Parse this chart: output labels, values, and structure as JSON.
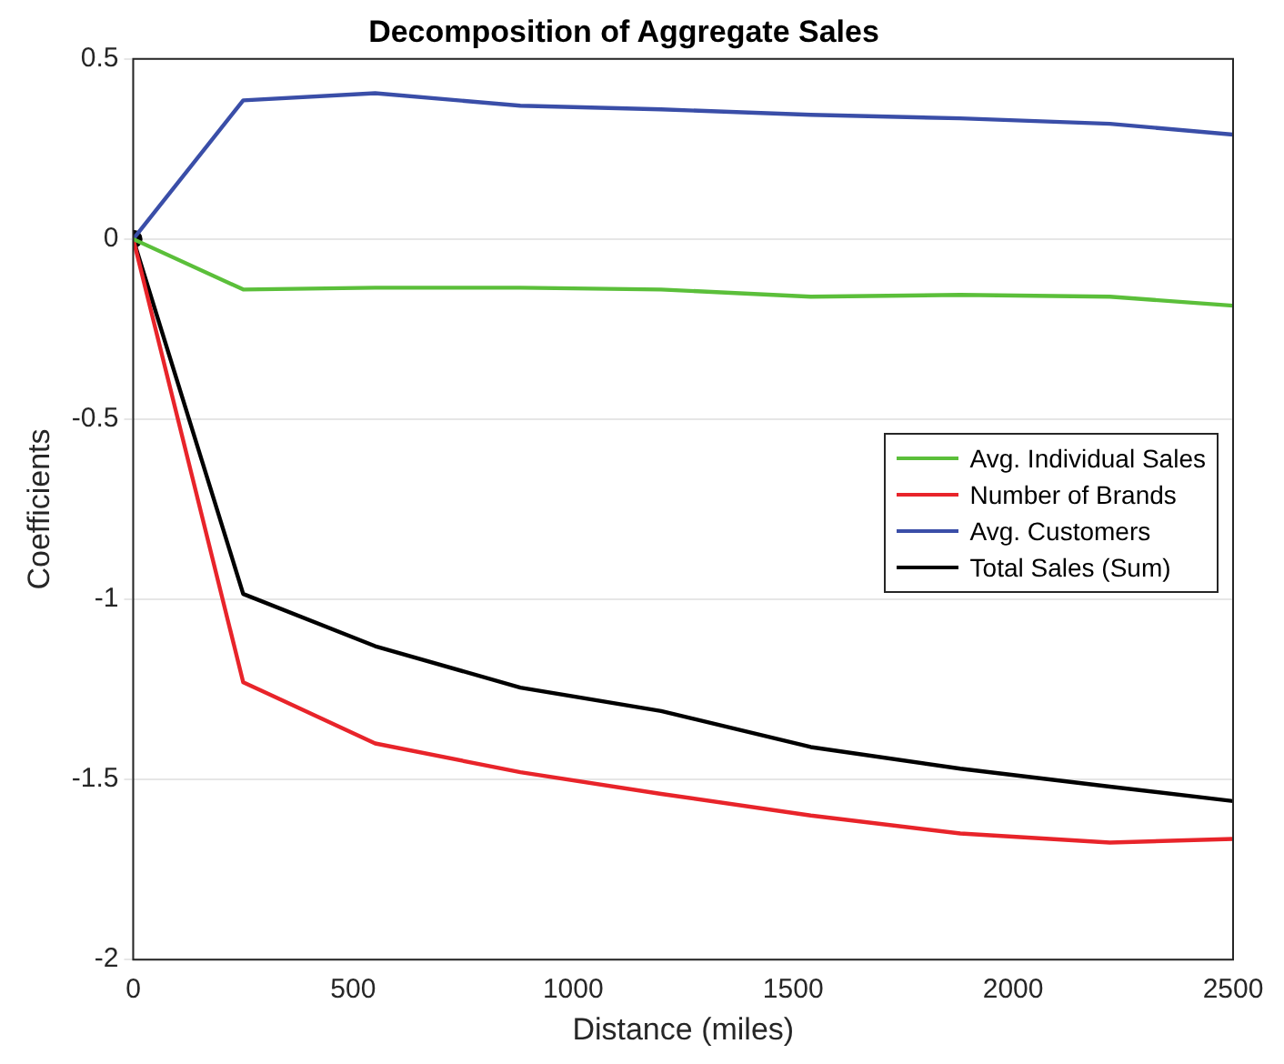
{
  "chart_data": {
    "type": "line",
    "title": "Decomposition of Aggregate Sales",
    "xlabel": "Distance (miles)",
    "ylabel": "Coefficients",
    "x": [
      0,
      250,
      550,
      880,
      1200,
      1540,
      1880,
      2220,
      2500
    ],
    "series": [
      {
        "name": "Avg. Individual Sales",
        "color": "#5bbf3a",
        "values": [
          0,
          -0.14,
          -0.135,
          -0.135,
          -0.14,
          -0.16,
          -0.155,
          -0.16,
          -0.185
        ]
      },
      {
        "name": "Number of Brands",
        "color": "#e8242a",
        "values": [
          0,
          -1.23,
          -1.4,
          -1.48,
          -1.54,
          -1.6,
          -1.65,
          -1.675,
          -1.665
        ]
      },
      {
        "name": "Avg. Customers",
        "color": "#3a4ea8",
        "values": [
          0,
          0.385,
          0.405,
          0.37,
          0.36,
          0.345,
          0.335,
          0.32,
          0.29
        ]
      },
      {
        "name": "Total Sales (Sum)",
        "color": "#000000",
        "values": [
          0,
          -0.985,
          -1.13,
          -1.245,
          -1.31,
          -1.41,
          -1.47,
          -1.52,
          -1.56
        ]
      },
      {
        "type": "scatter",
        "color": "#000000",
        "x": [
          0
        ],
        "values": [
          0
        ],
        "marker": "circle"
      }
    ],
    "xlim": [
      0,
      2500
    ],
    "xticks": [
      0,
      500,
      1000,
      1500,
      2000,
      2500
    ],
    "ylim": [
      -2,
      0.5
    ],
    "yticks": [
      -2,
      -1.5,
      -1,
      -0.5,
      0,
      0.5
    ],
    "grid": "y",
    "legend": "right",
    "marker": "none",
    "line_style": "solid"
  }
}
